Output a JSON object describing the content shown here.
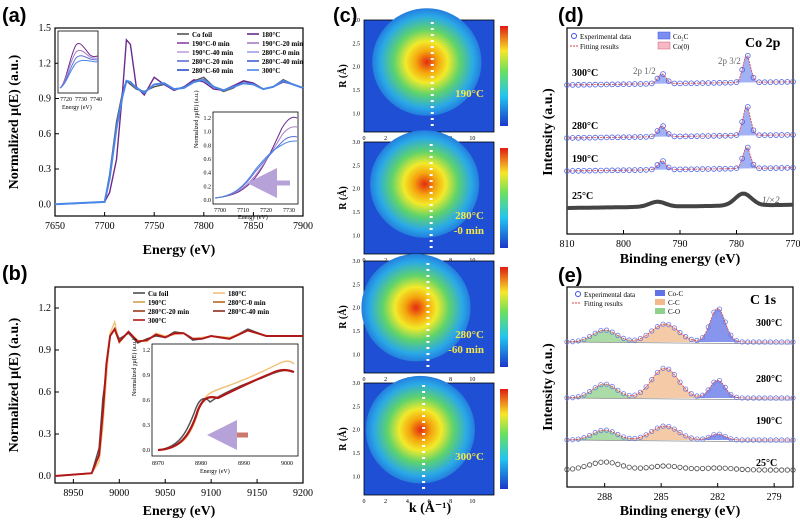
{
  "panels": {
    "a": {
      "label": "(a)"
    },
    "b": {
      "label": "(b)"
    },
    "c": {
      "label": "(c)"
    },
    "d": {
      "label": "(d)"
    },
    "e": {
      "label": "(e)"
    }
  },
  "chart_data": [
    {
      "id": "a",
      "type": "line",
      "xlabel": "Energy (eV)",
      "ylabel": "Normalized μ(E) (a.u.)",
      "xlim": [
        7650,
        7900
      ],
      "ylim": [
        -0.1,
        1.5
      ],
      "xticks": [
        7650,
        7700,
        7750,
        7800,
        7850,
        7900
      ],
      "yticks": [
        0.0,
        0.3,
        0.6,
        0.9,
        1.2,
        1.5
      ],
      "legend": [
        "Co foil",
        "180°C",
        "190°C-0 min",
        "190°C-20 min",
        "190°C-40 min",
        "280°C-0 min",
        "280°C-20 min",
        "280°C-40 min",
        "280°C-60 min",
        "300°C"
      ],
      "colors": [
        "#555555",
        "#6b2a8c",
        "#8b3fa8",
        "#a77cc9",
        "#c1a1dc",
        "#9f9fe3",
        "#5e6fd8",
        "#3f5fd0",
        "#2a4fc8",
        "#4a86e8"
      ],
      "x": [
        7650,
        7700,
        7705,
        7712,
        7718,
        7722,
        7726,
        7732,
        7740,
        7750,
        7760,
        7770,
        7780,
        7790,
        7800,
        7810,
        7820,
        7830,
        7840,
        7850,
        7860,
        7870,
        7880,
        7890,
        7900
      ],
      "series": [
        {
          "name": "Co foil",
          "values": [
            0.0,
            0.02,
            0.25,
            0.7,
            0.95,
            1.05,
            1.02,
            0.98,
            0.96,
            1.0,
            1.02,
            0.98,
            0.99,
            1.05,
            1.08,
            1.0,
            0.96,
            0.99,
            1.05,
            1.03,
            0.98,
            1.0,
            1.06,
            1.02,
            0.99
          ]
        },
        {
          "name": "180°C",
          "values": [
            0.0,
            0.02,
            0.1,
            0.38,
            0.95,
            1.4,
            1.36,
            1.0,
            0.93,
            1.08,
            1.02,
            0.97,
            1.0,
            1.06,
            1.04,
            0.98,
            0.97,
            1.01,
            1.05,
            1.03,
            0.98,
            1.0,
            1.04,
            1.02,
            0.99
          ]
        },
        {
          "name": "300°C",
          "values": [
            0.0,
            0.02,
            0.22,
            0.65,
            0.92,
            1.05,
            1.04,
            0.99,
            0.95,
            1.02,
            1.03,
            0.98,
            0.99,
            1.04,
            1.06,
            1.0,
            0.97,
            1.0,
            1.03,
            1.02,
            0.98,
            1.0,
            1.05,
            1.02,
            0.99
          ]
        }
      ],
      "inset_top": {
        "xlabel": "Energy (eV)",
        "xticks": [
          7720,
          7730,
          7740
        ]
      },
      "inset_bottom": {
        "xlabel": "Energy (eV)",
        "ylabel": "Normalized χμ(E) (a.u.)",
        "xticks": [
          7700,
          7710,
          7720,
          7730
        ],
        "yticks": [
          0.0,
          0.2,
          0.4,
          0.6,
          0.8,
          1.0,
          1.2
        ]
      }
    },
    {
      "id": "b",
      "type": "line",
      "xlabel": "Energy (eV)",
      "ylabel": "Normalized μ(E) (a.u.)",
      "xlim": [
        8930,
        9200
      ],
      "ylim": [
        -0.05,
        1.35
      ],
      "xticks": [
        8950,
        9000,
        9050,
        9100,
        9150,
        9200
      ],
      "yticks": [
        0.0,
        0.3,
        0.6,
        0.9,
        1.2
      ],
      "legend": [
        "Cu foil",
        "180°C",
        "190°C",
        "280°C-0 min",
        "280°C-20 min",
        "280°C-40 min",
        "300°C"
      ],
      "colors": [
        "#4d4d4d",
        "#f2c27a",
        "#d4a24b",
        "#b5651d",
        "#9c3a1a",
        "#8c2d1e",
        "#b01717"
      ],
      "x": [
        8930,
        8970,
        8978,
        8982,
        8986,
        8990,
        8995,
        9000,
        9010,
        9020,
        9030,
        9040,
        9050,
        9060,
        9070,
        9080,
        9090,
        9100,
        9120,
        9140,
        9160,
        9180,
        9200
      ],
      "series": [
        {
          "name": "Cu foil",
          "values": [
            0.0,
            0.02,
            0.2,
            0.55,
            0.75,
            1.0,
            1.05,
            0.98,
            1.02,
            0.95,
            0.98,
            1.0,
            0.99,
            1.03,
            1.02,
            0.97,
            0.98,
            1.0,
            0.98,
            1.05,
            1.0,
            1.0,
            1.0
          ]
        },
        {
          "name": "180°C",
          "values": [
            0.0,
            0.02,
            0.1,
            0.35,
            0.7,
            1.02,
            1.1,
            0.95,
            1.03,
            0.97,
            0.96,
            1.02,
            1.0,
            1.01,
            1.02,
            0.98,
            0.99,
            1.0,
            0.99,
            1.04,
            1.0,
            1.0,
            1.0
          ]
        },
        {
          "name": "300°C",
          "values": [
            0.0,
            0.02,
            0.15,
            0.45,
            0.8,
            1.0,
            1.05,
            0.96,
            1.03,
            0.96,
            0.97,
            1.01,
            0.99,
            1.02,
            1.02,
            0.98,
            0.98,
            1.0,
            0.98,
            1.04,
            1.0,
            1.0,
            1.0
          ]
        }
      ],
      "inset": {
        "xlabel": "Energy (eV)",
        "ylabel": "Normalized χμ(E) (a.u.)",
        "xticks": [
          8970,
          8980,
          8990,
          9000
        ],
        "yticks": [
          0.0,
          0.3,
          0.6,
          0.9,
          1.2
        ]
      }
    },
    {
      "id": "c",
      "type": "heatmap",
      "xlabel": "k (Å⁻¹)",
      "ylabel": "R (Å)",
      "xticks": [
        0,
        2,
        4,
        6,
        8,
        10
      ],
      "yticks": [
        1.0,
        1.5,
        2.0,
        2.5,
        3.0
      ],
      "maps": [
        {
          "label": "190°C",
          "line_label": "190°C",
          "sub_label": "",
          "dash_k": 6.3,
          "peak": {
            "k": 5.8,
            "R": 2.1
          }
        },
        {
          "label": "280°C",
          "line_label": "280°C",
          "sub_label": "-0 min",
          "dash_k": 6.2,
          "peak": {
            "k": 5.6,
            "R": 2.1
          }
        },
        {
          "label": "280°C",
          "line_label": "280°C",
          "sub_label": "-60 min",
          "dash_k": 5.9,
          "peak": {
            "k": 4.8,
            "R": 2.0
          }
        },
        {
          "label": "300°C",
          "line_label": "300°C",
          "sub_label": "",
          "dash_k": 5.5,
          "peak": {
            "k": 5.2,
            "R": 2.0
          }
        }
      ]
    },
    {
      "id": "d",
      "type": "line",
      "title": "Co 2p",
      "xlabel": "Binding energy (eV)",
      "ylabel": "Intensity (a.u.)",
      "xlim": [
        810,
        770
      ],
      "xticks": [
        810,
        800,
        790,
        780,
        770
      ],
      "legend": [
        "Experimental data",
        "Fitting results",
        "Co₂C",
        "Co(0)"
      ],
      "peak_labels": [
        "2p 1/2",
        "2p 3/2"
      ],
      "traces": [
        "300°C",
        "280°C",
        "190°C",
        "25°C"
      ],
      "scale_note": "1/×2",
      "peaks_eV": {
        "Co2C_2p32": 778.2,
        "Co2C_2p12": 793.2
      }
    },
    {
      "id": "e",
      "type": "line",
      "title": "C 1s",
      "xlabel": "Binding energy (eV)",
      "ylabel": "Intensity (a.u.)",
      "xlim": [
        290,
        278
      ],
      "xticks": [
        288,
        285,
        282,
        279
      ],
      "legend": [
        "Experimental data",
        "Fitting results",
        "Co-C",
        "C-C",
        "C-O"
      ],
      "traces": [
        "300°C",
        "280°C",
        "190°C",
        "25°C"
      ],
      "peaks_eV": {
        "C-O": 288.0,
        "C-C": 284.8,
        "Co-C": 282.0
      }
    }
  ]
}
